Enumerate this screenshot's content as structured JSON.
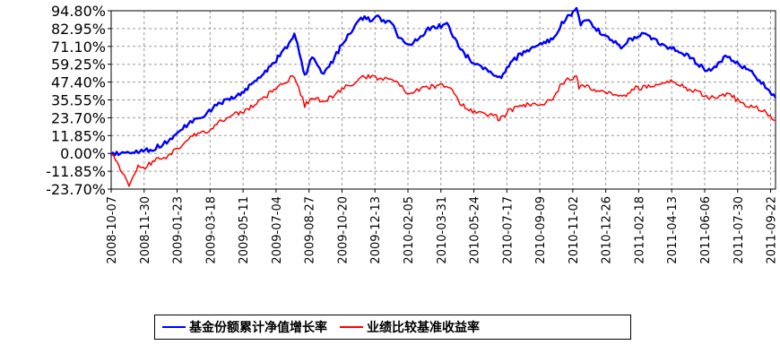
{
  "chart_data": {
    "type": "line",
    "title": "",
    "xlabel": "",
    "ylabel": "",
    "grid": true,
    "legend_position": "bottom",
    "yticks": [
      "94.80%",
      "82.95%",
      "71.10%",
      "59.25%",
      "47.40%",
      "35.55%",
      "23.70%",
      "11.85%",
      "0.00%",
      "-11.85%",
      "-23.70%"
    ],
    "ylim": [
      -23.7,
      94.8
    ],
    "xticks": [
      "2008-10-07",
      "2008-11-30",
      "2009-01-23",
      "2009-03-18",
      "2009-05-11",
      "2009-07-04",
      "2009-08-27",
      "2009-10-20",
      "2009-12-13",
      "2010-02-05",
      "2010-03-31",
      "2010-05-24",
      "2010-07-17",
      "2010-09-09",
      "2010-11-02",
      "2010-12-26",
      "2011-02-18",
      "2011-04-13",
      "2011-06-06",
      "2011-07-30",
      "2011-09-22"
    ],
    "xlim": [
      "2008-10-07",
      "2011-09-30"
    ],
    "series": [
      {
        "name": "基金份额累计净值增长率",
        "color": "#0000ff",
        "points": [
          [
            "2008-10-07",
            0.0
          ],
          [
            "2008-10-25",
            0.5
          ],
          [
            "2008-11-20",
            1.5
          ],
          [
            "2008-12-10",
            2.0
          ],
          [
            "2008-12-25",
            5.0
          ],
          [
            "2009-01-15",
            9.0
          ],
          [
            "2009-02-01",
            17.0
          ],
          [
            "2009-02-20",
            22.0
          ],
          [
            "2009-03-10",
            26.0
          ],
          [
            "2009-04-01",
            33.0
          ],
          [
            "2009-04-25",
            37.0
          ],
          [
            "2009-05-15",
            42.0
          ],
          [
            "2009-06-05",
            51.0
          ],
          [
            "2009-06-25",
            57.0
          ],
          [
            "2009-07-10",
            65.0
          ],
          [
            "2009-07-25",
            72.0
          ],
          [
            "2009-08-03",
            80.0
          ],
          [
            "2009-08-08",
            72.0
          ],
          [
            "2009-08-15",
            61.0
          ],
          [
            "2009-08-20",
            51.0
          ],
          [
            "2009-09-01",
            64.0
          ],
          [
            "2009-09-10",
            57.0
          ],
          [
            "2009-09-20",
            53.0
          ],
          [
            "2009-10-05",
            62.0
          ],
          [
            "2009-10-20",
            72.0
          ],
          [
            "2009-11-05",
            82.0
          ],
          [
            "2009-11-20",
            90.0
          ],
          [
            "2009-12-05",
            89.0
          ],
          [
            "2009-12-15",
            91.0
          ],
          [
            "2009-12-30",
            88.0
          ],
          [
            "2010-01-12",
            85.0
          ],
          [
            "2010-01-20",
            78.0
          ],
          [
            "2010-02-05",
            72.0
          ],
          [
            "2010-02-20",
            76.0
          ],
          [
            "2010-03-10",
            83.0
          ],
          [
            "2010-03-25",
            84.0
          ],
          [
            "2010-04-10",
            86.0
          ],
          [
            "2010-04-20",
            78.0
          ],
          [
            "2010-05-05",
            68.0
          ],
          [
            "2010-05-20",
            61.0
          ],
          [
            "2010-06-05",
            57.0
          ],
          [
            "2010-06-20",
            55.0
          ],
          [
            "2010-07-05",
            50.0
          ],
          [
            "2010-07-20",
            58.0
          ],
          [
            "2010-08-05",
            65.0
          ],
          [
            "2010-08-25",
            70.0
          ],
          [
            "2010-09-10",
            72.0
          ],
          [
            "2010-09-30",
            76.0
          ],
          [
            "2010-10-15",
            86.0
          ],
          [
            "2010-10-28",
            92.0
          ],
          [
            "2010-11-08",
            95.0
          ],
          [
            "2010-11-15",
            85.0
          ],
          [
            "2010-11-25",
            90.0
          ],
          [
            "2010-12-05",
            84.0
          ],
          [
            "2010-12-20",
            80.0
          ],
          [
            "2011-01-05",
            75.0
          ],
          [
            "2011-01-20",
            71.0
          ],
          [
            "2011-02-05",
            76.0
          ],
          [
            "2011-02-20",
            79.0
          ],
          [
            "2011-03-05",
            78.0
          ],
          [
            "2011-03-25",
            73.0
          ],
          [
            "2011-04-10",
            70.0
          ],
          [
            "2011-04-25",
            68.0
          ],
          [
            "2011-05-10",
            65.0
          ],
          [
            "2011-05-25",
            60.0
          ],
          [
            "2011-06-10",
            54.0
          ],
          [
            "2011-06-25",
            58.0
          ],
          [
            "2011-07-10",
            64.0
          ],
          [
            "2011-07-20",
            62.0
          ],
          [
            "2011-08-10",
            57.0
          ],
          [
            "2011-08-25",
            53.0
          ],
          [
            "2011-09-10",
            46.0
          ],
          [
            "2011-09-20",
            42.0
          ],
          [
            "2011-09-30",
            37.0
          ]
        ]
      },
      {
        "name": "业绩比较基准收益率",
        "color": "#ff0000",
        "points": [
          [
            "2008-10-07",
            0.0
          ],
          [
            "2008-10-14",
            -5.0
          ],
          [
            "2008-10-25",
            -12.0
          ],
          [
            "2008-11-01",
            -18.0
          ],
          [
            "2008-11-05",
            -21.0
          ],
          [
            "2008-11-12",
            -16.0
          ],
          [
            "2008-11-20",
            -7.0
          ],
          [
            "2008-11-28",
            -10.0
          ],
          [
            "2008-12-05",
            -8.0
          ],
          [
            "2008-12-20",
            -4.0
          ],
          [
            "2009-01-05",
            -3.0
          ],
          [
            "2009-01-20",
            2.0
          ],
          [
            "2009-02-05",
            8.0
          ],
          [
            "2009-02-20",
            12.0
          ],
          [
            "2009-03-10",
            14.0
          ],
          [
            "2009-04-01",
            20.0
          ],
          [
            "2009-04-25",
            26.0
          ],
          [
            "2009-05-15",
            28.0
          ],
          [
            "2009-06-05",
            35.0
          ],
          [
            "2009-06-25",
            40.0
          ],
          [
            "2009-07-15",
            46.0
          ],
          [
            "2009-08-03",
            52.0
          ],
          [
            "2009-08-10",
            44.0
          ],
          [
            "2009-08-20",
            32.0
          ],
          [
            "2009-08-28",
            35.0
          ],
          [
            "2009-09-05",
            37.0
          ],
          [
            "2009-09-20",
            34.0
          ],
          [
            "2009-10-05",
            38.0
          ],
          [
            "2009-10-20",
            43.0
          ],
          [
            "2009-11-05",
            46.0
          ],
          [
            "2009-11-20",
            50.0
          ],
          [
            "2009-12-05",
            51.0
          ],
          [
            "2009-12-20",
            49.0
          ],
          [
            "2010-01-05",
            50.0
          ],
          [
            "2010-01-20",
            46.0
          ],
          [
            "2010-02-05",
            40.0
          ],
          [
            "2010-02-20",
            42.0
          ],
          [
            "2010-03-10",
            44.0
          ],
          [
            "2010-03-30",
            45.0
          ],
          [
            "2010-04-15",
            44.0
          ],
          [
            "2010-04-25",
            37.0
          ],
          [
            "2010-05-10",
            30.0
          ],
          [
            "2010-05-25",
            27.0
          ],
          [
            "2010-06-10",
            27.0
          ],
          [
            "2010-06-30",
            24.0
          ],
          [
            "2010-07-05",
            22.0
          ],
          [
            "2010-07-20",
            28.0
          ],
          [
            "2010-08-05",
            31.0
          ],
          [
            "2010-08-25",
            33.0
          ],
          [
            "2010-09-10",
            32.0
          ],
          [
            "2010-09-30",
            37.0
          ],
          [
            "2010-10-15",
            46.0
          ],
          [
            "2010-10-28",
            50.0
          ],
          [
            "2010-11-08",
            51.0
          ],
          [
            "2010-11-12",
            44.0
          ],
          [
            "2010-11-25",
            45.0
          ],
          [
            "2010-12-10",
            42.0
          ],
          [
            "2010-12-25",
            40.0
          ],
          [
            "2011-01-10",
            40.0
          ],
          [
            "2011-01-25",
            38.0
          ],
          [
            "2011-02-10",
            43.0
          ],
          [
            "2011-02-25",
            44.0
          ],
          [
            "2011-03-15",
            45.0
          ],
          [
            "2011-03-30",
            46.0
          ],
          [
            "2011-04-15",
            48.0
          ],
          [
            "2011-04-30",
            45.0
          ],
          [
            "2011-05-15",
            42.0
          ],
          [
            "2011-05-30",
            40.0
          ],
          [
            "2011-06-15",
            37.0
          ],
          [
            "2011-06-30",
            37.0
          ],
          [
            "2011-07-15",
            40.0
          ],
          [
            "2011-07-30",
            35.0
          ],
          [
            "2011-08-15",
            31.0
          ],
          [
            "2011-08-30",
            30.0
          ],
          [
            "2011-09-15",
            27.0
          ],
          [
            "2011-09-30",
            22.0
          ]
        ]
      }
    ]
  }
}
